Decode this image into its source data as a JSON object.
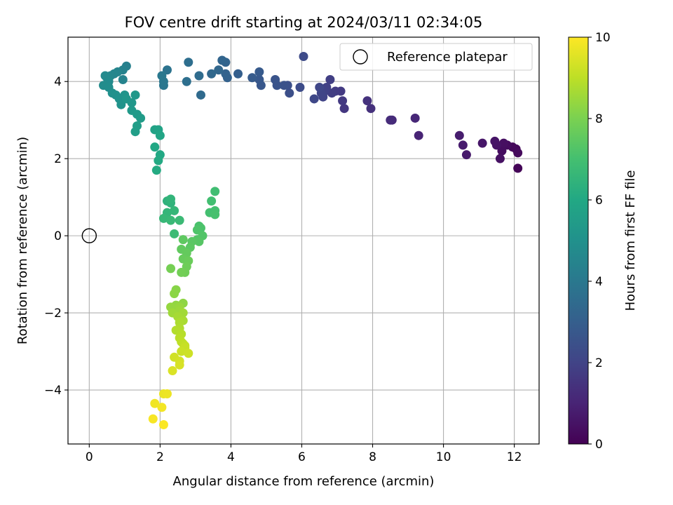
{
  "chart_data": {
    "type": "scatter",
    "title": "FOV centre drift starting at 2024/03/11 02:34:05",
    "xlabel": "Angular distance from reference (arcmin)",
    "ylabel": "Rotation from reference (arcmin)",
    "colorbar_label": "Hours from first FF file",
    "xlim": [
      -0.6,
      12.7
    ],
    "ylim": [
      -5.4,
      5.15
    ],
    "xticks": [
      0,
      2,
      4,
      6,
      8,
      10,
      12
    ],
    "yticks": [
      -4,
      -2,
      0,
      2,
      4
    ],
    "xtick_labels": [
      "0",
      "2",
      "4",
      "6",
      "8",
      "10",
      "12"
    ],
    "ytick_labels": [
      "−4",
      "−2",
      "0",
      "2",
      "4"
    ],
    "color_range": [
      0,
      10
    ],
    "colorbar_ticks": [
      0,
      2,
      4,
      6,
      8,
      10
    ],
    "colorbar_tick_labels": [
      "0",
      "2",
      "4",
      "6",
      "8",
      "10"
    ],
    "colormap": "viridis",
    "grid": true,
    "legend": {
      "placement": "top-right",
      "entries": [
        "Reference platepar"
      ]
    },
    "reference_point": {
      "x": 0,
      "y": 0,
      "label": "Reference platepar"
    },
    "series": [
      {
        "points": [
          [
            12.1,
            1.75,
            0.1
          ],
          [
            12.05,
            2.25,
            0.15
          ],
          [
            11.95,
            2.3,
            0.2
          ],
          [
            12.1,
            2.15,
            0.25
          ],
          [
            11.8,
            2.35,
            0.3
          ],
          [
            11.65,
            2.2,
            0.35
          ],
          [
            11.7,
            2.4,
            0.4
          ],
          [
            11.6,
            2.0,
            0.45
          ],
          [
            11.5,
            2.35,
            0.5
          ],
          [
            11.45,
            2.45,
            0.55
          ],
          [
            11.1,
            2.4,
            0.6
          ],
          [
            10.65,
            2.1,
            0.7
          ],
          [
            10.55,
            2.35,
            0.75
          ],
          [
            10.45,
            2.6,
            0.8
          ],
          [
            9.3,
            2.6,
            1.0
          ],
          [
            9.2,
            3.05,
            1.1
          ],
          [
            8.55,
            3.0,
            1.2
          ],
          [
            8.5,
            3.0,
            1.25
          ],
          [
            7.95,
            3.3,
            1.4
          ],
          [
            7.85,
            3.5,
            1.45
          ],
          [
            7.2,
            3.3,
            1.6
          ],
          [
            7.15,
            3.5,
            1.65
          ],
          [
            7.1,
            3.75,
            1.7
          ],
          [
            6.95,
            3.75,
            1.75
          ],
          [
            6.85,
            3.7,
            1.8
          ],
          [
            6.8,
            4.05,
            1.85
          ],
          [
            6.7,
            3.85,
            1.9
          ],
          [
            6.65,
            3.75,
            1.95
          ],
          [
            6.6,
            3.6,
            2.0
          ],
          [
            6.55,
            3.7,
            2.05
          ],
          [
            6.5,
            3.85,
            2.1
          ],
          [
            6.35,
            3.55,
            2.15
          ],
          [
            6.05,
            4.65,
            2.25
          ],
          [
            5.95,
            3.85,
            2.3
          ],
          [
            5.65,
            3.7,
            2.4
          ],
          [
            5.6,
            3.9,
            2.45
          ],
          [
            5.5,
            3.9,
            2.5
          ],
          [
            5.3,
            3.9,
            2.55
          ],
          [
            5.25,
            4.05,
            2.6
          ],
          [
            4.85,
            3.9,
            2.7
          ],
          [
            4.8,
            4.05,
            2.75
          ],
          [
            4.8,
            4.25,
            2.8
          ],
          [
            4.6,
            4.1,
            2.85
          ],
          [
            4.2,
            4.2,
            3.0
          ],
          [
            3.9,
            4.1,
            3.1
          ],
          [
            3.85,
            4.2,
            3.15
          ],
          [
            3.85,
            4.5,
            3.2
          ],
          [
            3.75,
            4.55,
            3.25
          ],
          [
            3.65,
            4.3,
            3.3
          ],
          [
            3.45,
            4.2,
            3.35
          ],
          [
            3.15,
            3.65,
            3.45
          ],
          [
            3.1,
            4.15,
            3.5
          ],
          [
            2.8,
            4.5,
            3.6
          ],
          [
            2.75,
            4.0,
            3.65
          ],
          [
            2.2,
            4.3,
            3.8
          ],
          [
            2.1,
            3.9,
            3.9
          ],
          [
            2.1,
            4.0,
            3.95
          ],
          [
            2.05,
            4.15,
            4.0
          ],
          [
            1.05,
            4.4,
            4.3
          ],
          [
            0.95,
            4.3,
            4.4
          ],
          [
            0.95,
            4.05,
            4.45
          ],
          [
            0.8,
            4.25,
            4.5
          ],
          [
            0.7,
            4.2,
            4.55
          ],
          [
            0.6,
            4.15,
            4.6
          ],
          [
            0.5,
            4.1,
            4.65
          ],
          [
            0.45,
            4.15,
            4.7
          ],
          [
            0.55,
            4.0,
            4.75
          ],
          [
            0.4,
            3.9,
            4.8
          ],
          [
            0.55,
            3.85,
            4.85
          ],
          [
            0.65,
            3.7,
            4.95
          ],
          [
            0.75,
            3.65,
            5.0
          ],
          [
            0.85,
            3.55,
            5.05
          ],
          [
            0.9,
            3.4,
            5.1
          ],
          [
            1.0,
            3.65,
            5.15
          ],
          [
            1.05,
            3.55,
            5.2
          ],
          [
            1.2,
            3.45,
            5.25
          ],
          [
            1.3,
            3.65,
            5.3
          ],
          [
            1.2,
            3.25,
            5.35
          ],
          [
            1.35,
            3.15,
            5.4
          ],
          [
            1.45,
            3.05,
            5.45
          ],
          [
            1.35,
            2.85,
            5.5
          ],
          [
            1.3,
            2.7,
            5.55
          ],
          [
            1.85,
            2.75,
            5.75
          ],
          [
            1.95,
            2.75,
            5.8
          ],
          [
            2.0,
            2.6,
            5.85
          ],
          [
            1.85,
            2.3,
            5.95
          ],
          [
            2.0,
            2.1,
            6.0
          ],
          [
            1.95,
            1.95,
            6.05
          ],
          [
            1.9,
            1.7,
            6.1
          ],
          [
            2.2,
            0.9,
            6.4
          ],
          [
            2.3,
            0.85,
            6.45
          ],
          [
            2.3,
            0.95,
            6.5
          ],
          [
            2.2,
            0.6,
            6.55
          ],
          [
            2.4,
            0.65,
            6.6
          ],
          [
            2.1,
            0.45,
            6.65
          ],
          [
            2.3,
            0.4,
            6.7
          ],
          [
            2.55,
            0.4,
            6.75
          ],
          [
            2.4,
            0.05,
            6.8
          ],
          [
            3.55,
            1.15,
            6.9
          ],
          [
            3.45,
            0.9,
            6.95
          ],
          [
            3.55,
            0.65,
            7.0
          ],
          [
            3.4,
            0.6,
            7.0
          ],
          [
            3.55,
            0.55,
            7.05
          ],
          [
            3.1,
            0.25,
            7.1
          ],
          [
            3.15,
            0.2,
            7.15
          ],
          [
            3.05,
            0.15,
            7.2
          ],
          [
            3.2,
            0.0,
            7.25
          ],
          [
            3.05,
            -0.1,
            7.3
          ],
          [
            3.1,
            -0.15,
            7.35
          ],
          [
            2.9,
            -0.15,
            7.4
          ],
          [
            2.85,
            -0.3,
            7.45
          ],
          [
            2.65,
            -0.1,
            7.5
          ],
          [
            2.6,
            -0.35,
            7.55
          ],
          [
            2.75,
            -0.45,
            7.6
          ],
          [
            2.65,
            -0.6,
            7.65
          ],
          [
            2.8,
            -0.65,
            7.7
          ],
          [
            2.75,
            -0.8,
            7.75
          ],
          [
            2.7,
            -0.95,
            7.8
          ],
          [
            2.6,
            -0.95,
            7.85
          ],
          [
            2.3,
            -0.85,
            7.9
          ],
          [
            2.45,
            -1.4,
            8.2
          ],
          [
            2.4,
            -1.5,
            8.25
          ],
          [
            2.65,
            -1.75,
            8.3
          ],
          [
            2.45,
            -1.8,
            8.35
          ],
          [
            2.3,
            -1.85,
            8.4
          ],
          [
            2.55,
            -1.85,
            8.45
          ],
          [
            2.55,
            -1.95,
            8.5
          ],
          [
            2.35,
            -2.0,
            8.55
          ],
          [
            2.65,
            -2.0,
            8.6
          ],
          [
            2.5,
            -2.1,
            8.65
          ],
          [
            2.65,
            -2.2,
            8.7
          ],
          [
            2.55,
            -2.25,
            8.75
          ],
          [
            2.55,
            -2.4,
            8.8
          ],
          [
            2.45,
            -2.45,
            8.85
          ],
          [
            2.6,
            -2.55,
            8.9
          ],
          [
            2.55,
            -2.65,
            8.95
          ],
          [
            2.6,
            -2.75,
            9.0
          ],
          [
            2.65,
            -2.8,
            9.05
          ],
          [
            2.7,
            -2.85,
            9.1
          ],
          [
            2.7,
            -2.9,
            9.15
          ],
          [
            2.6,
            -3.0,
            9.2
          ],
          [
            2.8,
            -3.05,
            9.25
          ],
          [
            2.4,
            -3.15,
            9.3
          ],
          [
            2.55,
            -3.25,
            9.35
          ],
          [
            2.55,
            -3.35,
            9.4
          ],
          [
            2.35,
            -3.5,
            9.45
          ],
          [
            2.1,
            -4.1,
            9.7
          ],
          [
            2.2,
            -4.1,
            9.75
          ],
          [
            1.85,
            -4.35,
            9.8
          ],
          [
            2.05,
            -4.45,
            9.85
          ],
          [
            1.8,
            -4.75,
            9.9
          ],
          [
            2.1,
            -4.9,
            9.95
          ]
        ]
      }
    ]
  }
}
